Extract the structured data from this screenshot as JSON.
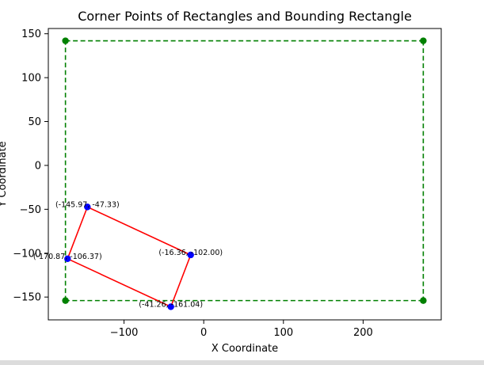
{
  "chart_data": {
    "type": "scatter",
    "title": "Corner Points of Rectangles and Bounding Rectangle",
    "xlabel": "X Coordinate",
    "ylabel": "Y Coordinate",
    "xlim": [
      -195,
      298
    ],
    "ylim": [
      -176,
      156
    ],
    "x_ticks": [
      -100,
      0,
      100,
      200
    ],
    "x_tick_labels": [
      "−100",
      "0",
      "100",
      "200"
    ],
    "y_ticks": [
      150,
      100,
      50,
      0,
      -50,
      -100,
      -150
    ],
    "y_tick_labels": [
      "150",
      "100",
      "50",
      "0",
      "−50",
      "−100",
      "−150"
    ],
    "grid": false,
    "series": [
      {
        "kind": "rectangle-corners",
        "color": "#0000ff",
        "line_color": "#ff0000",
        "points": [
          {
            "x": -145.97,
            "y": -47.33,
            "label": "(-145.97, -47.33)"
          },
          {
            "x": -16.36,
            "y": -102.0,
            "label": "(-16.36, -102.00)"
          },
          {
            "x": -41.26,
            "y": -161.04,
            "label": "(-41.26, -161.04)"
          },
          {
            "x": -170.87,
            "y": -106.37,
            "label": "(-170.87, -106.37)"
          }
        ]
      },
      {
        "kind": "bounding-rectangle",
        "color": "#008000",
        "line_style": "dashed",
        "points": [
          {
            "x": -173.5,
            "y": 142
          },
          {
            "x": 275.5,
            "y": 142
          },
          {
            "x": 275.5,
            "y": -154
          },
          {
            "x": -173.5,
            "y": -154
          }
        ]
      }
    ]
  }
}
